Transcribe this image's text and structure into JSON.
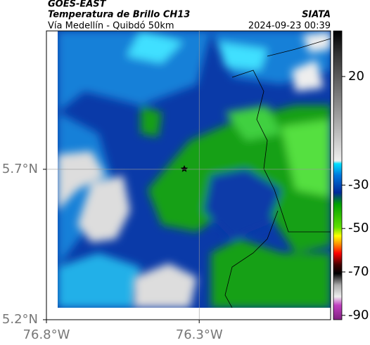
{
  "header": {
    "line1": "GOES-EAST",
    "line2": "Temperatura de Brillo CH13",
    "line3": "Vía Medellín - Quibdó 50km",
    "source": "SIATA",
    "datetime": "2024-09-23 00:39"
  },
  "map": {
    "latlim": [
      5.2,
      6.16
    ],
    "lonlim": [
      -76.8,
      -75.87
    ],
    "latticks": [
      {
        "value": 5.2,
        "label": "5.2°N"
      },
      {
        "value": 5.7,
        "label": "5.7°N"
      }
    ],
    "lonticks": [
      {
        "value": -76.8,
        "label": "76.8°W"
      },
      {
        "value": -76.3,
        "label": "76.3°W"
      }
    ],
    "grid": true
  },
  "colorbar": {
    "clim": [
      -92,
      41
    ],
    "ticks": [
      20,
      -30,
      -50,
      -70,
      -90
    ]
  }
}
